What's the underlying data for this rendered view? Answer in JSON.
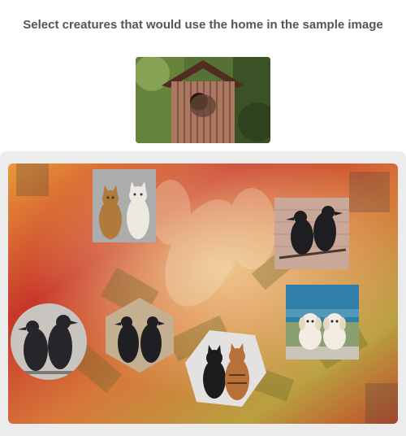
{
  "prompt": {
    "text": "Select creatures that would use the home in the sample image"
  },
  "sample": {
    "icon": "birdhouse-sample-image"
  },
  "tiles": [
    {
      "id": "cats-1",
      "icon": "cats-image"
    },
    {
      "id": "crows-1",
      "icon": "crows-image"
    },
    {
      "id": "crows-2",
      "icon": "crows-image"
    },
    {
      "id": "crows-3",
      "icon": "crows-image"
    },
    {
      "id": "cats-2",
      "icon": "cats-image"
    },
    {
      "id": "dogs-1",
      "icon": "dogs-image"
    }
  ]
}
